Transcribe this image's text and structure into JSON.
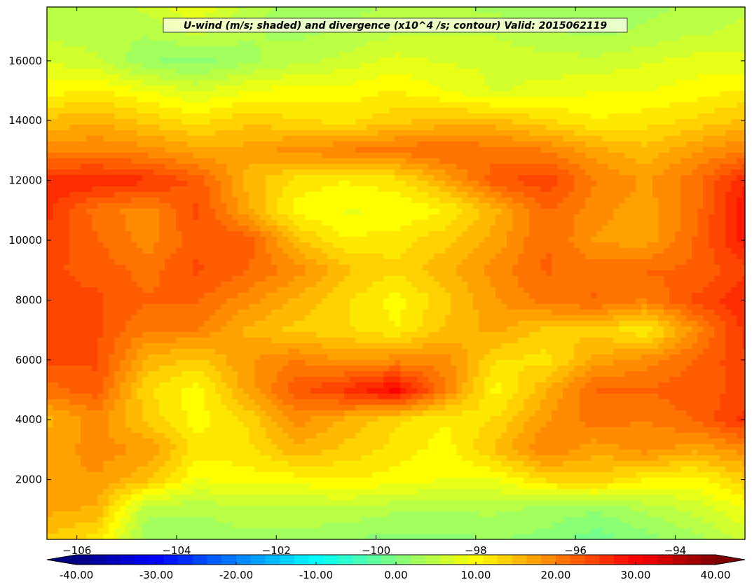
{
  "chart_data": {
    "type": "heatmap",
    "title": "U-wind (m/s; shaded) and divergence (x10^4 /s; contour) Valid: 2015062119",
    "x": {
      "range": [
        -106.6,
        -92.6
      ],
      "ticks": [
        -106,
        -104,
        -102,
        -100,
        -98,
        -96,
        -94
      ],
      "tick_labels": [
        "−106",
        "−104",
        "−102",
        "−100",
        "−98",
        "−96",
        "−94"
      ]
    },
    "y": {
      "range": [
        0,
        17800
      ],
      "ticks": [
        2000,
        4000,
        6000,
        8000,
        10000,
        12000,
        14000,
        16000
      ],
      "tick_labels": [
        "2000",
        "4000",
        "6000",
        "8000",
        "10000",
        "12000",
        "14000",
        "16000"
      ]
    },
    "colorbar": {
      "min": -40,
      "max": 40,
      "levels": 44,
      "extend": "both",
      "ticks": [
        -40,
        -30,
        -20,
        -10,
        0,
        10,
        20,
        30,
        40
      ],
      "tick_labels": [
        "-40.00",
        "-30.00",
        "-20.00",
        "-10.00",
        "0.00",
        "10.00",
        "20.00",
        "30.00",
        "40.00"
      ]
    },
    "grid": false,
    "lon": [
      -106.6,
      -105.6,
      -104.6,
      -103.6,
      -102.6,
      -101.6,
      -100.6,
      -99.6,
      -98.6,
      -97.6,
      -96.6,
      -95.6,
      -94.6,
      -93.6,
      -92.6
    ],
    "height": [
      0,
      1000,
      2000,
      3000,
      4000,
      5000,
      6000,
      7000,
      8000,
      9000,
      10000,
      11000,
      12000,
      13000,
      14000,
      15000,
      16000,
      17000,
      17800
    ],
    "u_wind": [
      [
        14,
        12,
        2,
        2,
        3,
        3,
        2,
        1,
        1,
        2,
        1,
        -1,
        1,
        3,
        6
      ],
      [
        17,
        16,
        4,
        4,
        5,
        5,
        5,
        4,
        4,
        4,
        3,
        2,
        4,
        6,
        9
      ],
      [
        18,
        18,
        15,
        9,
        10,
        10,
        11,
        10,
        9,
        9,
        13,
        14,
        11,
        10,
        14
      ],
      [
        17,
        19,
        18,
        12,
        12,
        16,
        14,
        12,
        10,
        15,
        20,
        17,
        19,
        17,
        19
      ],
      [
        16,
        19,
        14,
        10,
        13,
        19,
        16,
        13,
        11,
        13,
        18,
        21,
        20,
        22,
        26
      ],
      [
        21,
        23,
        13,
        10,
        17,
        23,
        26,
        30,
        20,
        10,
        16,
        22,
        22,
        23,
        24
      ],
      [
        24,
        24,
        16,
        14,
        18,
        20,
        18,
        19,
        19,
        13,
        12,
        17,
        19,
        22,
        25
      ],
      [
        25,
        24,
        20,
        20,
        16,
        14,
        13,
        11,
        15,
        17,
        14,
        14,
        11,
        19,
        26
      ],
      [
        24,
        24,
        22,
        22,
        19,
        16,
        13,
        10,
        14,
        18,
        21,
        22,
        20,
        24,
        27
      ],
      [
        24,
        23,
        21,
        24,
        22,
        19,
        15,
        13,
        16,
        19,
        22,
        21,
        22,
        22,
        25
      ],
      [
        25,
        22,
        19,
        23,
        23,
        15,
        11,
        12,
        14,
        17,
        22,
        18,
        17,
        22,
        28
      ],
      [
        26,
        21,
        19,
        24,
        17,
        10,
        9,
        9,
        11,
        16,
        22,
        19,
        17,
        21,
        29
      ],
      [
        27,
        27,
        26,
        23,
        16,
        12,
        11,
        12,
        17,
        23,
        25,
        20,
        18,
        21,
        27
      ],
      [
        19,
        20,
        19,
        17,
        17,
        19,
        20,
        21,
        22,
        21,
        20,
        17,
        15,
        18,
        20
      ],
      [
        15,
        16,
        14,
        12,
        14,
        13,
        12,
        14,
        15,
        15,
        13,
        11,
        12,
        13,
        15
      ],
      [
        10,
        11,
        9,
        7,
        9,
        10,
        10,
        11,
        9,
        7,
        8,
        9,
        9,
        10,
        11
      ],
      [
        7,
        6,
        2,
        1,
        3,
        5,
        6,
        8,
        7,
        7,
        6,
        6,
        7,
        8,
        8
      ],
      [
        5,
        4,
        4,
        6,
        4,
        3,
        4,
        5,
        5,
        5,
        4,
        3,
        4,
        5,
        6
      ],
      [
        5,
        4,
        6,
        9,
        5,
        2,
        3,
        4,
        4,
        3,
        2,
        2,
        3,
        4,
        5
      ]
    ]
  }
}
